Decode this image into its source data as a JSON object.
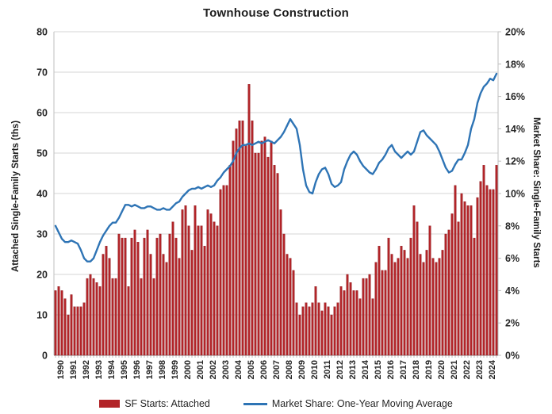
{
  "title": "Townhouse Construction",
  "legend": {
    "bars_label": "SF Starts: Attached",
    "line_label": "Market Share: One-Year Moving Average"
  },
  "colors": {
    "bar_fill": "#b22428",
    "bar_edge": "#8f1b20",
    "line": "#2e74b5",
    "grid": "#d6d6d6",
    "axis": "#bfbfbf",
    "axis_bottom": "#8c8c8c",
    "text": "#262626"
  },
  "chart_data": {
    "type": "bar",
    "title": "Townhouse Construction",
    "left_axis": {
      "title": "Attached Single-Family Starts (ths)",
      "min": 0,
      "max": 80,
      "step": 10,
      "tick_labels": [
        "80",
        "70",
        "60",
        "50",
        "40",
        "30",
        "20",
        "10",
        "0"
      ]
    },
    "right_axis": {
      "title": "Market Share: Single-Family Starts",
      "min": 0,
      "max": 20,
      "step": 2,
      "tick_labels": [
        "20%",
        "18%",
        "16%",
        "14%",
        "12%",
        "10%",
        "8%",
        "6%",
        "4%",
        "2%",
        "0%"
      ]
    },
    "x_year_labels": [
      "1990",
      "1991",
      "1992",
      "1993",
      "1994",
      "1995",
      "1996",
      "1997",
      "1998",
      "1999",
      "2000",
      "2001",
      "2002",
      "2003",
      "2004",
      "2005",
      "2006",
      "2007",
      "2008",
      "2009",
      "2010",
      "2011",
      "2012",
      "2013",
      "2014",
      "2015",
      "2016",
      "2017",
      "2018",
      "2019",
      "2020",
      "2021",
      "2022",
      "2023",
      "2024"
    ],
    "quarters_per_year": 4,
    "series": [
      {
        "name": "SF Starts: Attached",
        "kind": "bar",
        "axis": "left",
        "values": [
          16,
          17,
          16,
          14,
          10,
          15,
          12,
          12,
          12,
          13,
          19,
          20,
          19,
          18,
          17,
          25,
          27,
          24,
          19,
          19,
          30,
          29,
          29,
          17,
          29,
          31,
          28,
          19,
          29,
          31,
          25,
          19,
          29,
          30,
          25,
          23,
          30,
          33,
          29,
          24,
          36,
          37,
          32,
          26,
          37,
          32,
          32,
          27,
          36,
          35,
          33,
          32,
          41,
          42,
          42,
          47,
          53,
          56,
          58,
          58,
          52,
          67,
          58,
          50,
          50,
          53,
          54,
          49,
          53,
          47,
          45,
          36,
          30,
          25,
          24,
          21,
          13,
          10,
          12,
          13,
          12,
          13,
          17,
          13,
          11,
          13,
          12,
          10,
          12,
          13,
          17,
          16,
          20,
          18,
          16,
          16,
          14,
          19,
          19,
          20,
          14,
          23,
          27,
          21,
          21,
          29,
          25,
          23,
          24,
          27,
          26,
          24,
          29,
          37,
          33,
          25,
          23,
          26,
          32,
          24,
          23,
          24,
          26,
          30,
          31,
          35,
          42,
          33,
          40,
          38,
          37,
          37,
          29,
          39,
          43,
          47,
          42,
          41,
          41,
          47
        ]
      },
      {
        "name": "Market Share: One-Year Moving Average",
        "kind": "line",
        "axis": "right",
        "values": [
          8.0,
          7.6,
          7.2,
          7.0,
          7.0,
          7.1,
          7.0,
          6.9,
          6.5,
          6.0,
          5.8,
          5.8,
          6.0,
          6.5,
          7.0,
          7.4,
          7.7,
          8.0,
          8.2,
          8.2,
          8.5,
          8.9,
          9.3,
          9.3,
          9.2,
          9.3,
          9.2,
          9.1,
          9.1,
          9.2,
          9.2,
          9.1,
          9.0,
          9.0,
          9.1,
          9.0,
          9.0,
          9.2,
          9.4,
          9.5,
          9.8,
          10.0,
          10.2,
          10.3,
          10.3,
          10.4,
          10.3,
          10.4,
          10.5,
          10.4,
          10.5,
          10.8,
          11.0,
          11.3,
          11.5,
          11.7,
          12.0,
          12.5,
          12.8,
          13.0,
          13.0,
          13.1,
          13.0,
          13.1,
          13.2,
          13.1,
          13.2,
          13.3,
          13.2,
          13.1,
          13.3,
          13.5,
          13.8,
          14.2,
          14.6,
          14.3,
          14.0,
          13.0,
          11.5,
          10.5,
          10.1,
          10.0,
          10.7,
          11.2,
          11.5,
          11.6,
          11.2,
          10.6,
          10.4,
          10.5,
          10.7,
          11.5,
          12.0,
          12.4,
          12.6,
          12.4,
          12.0,
          11.7,
          11.5,
          11.3,
          11.2,
          11.5,
          11.9,
          12.1,
          12.4,
          12.8,
          13.0,
          12.6,
          12.4,
          12.2,
          12.4,
          12.6,
          12.4,
          12.6,
          13.2,
          13.8,
          13.9,
          13.6,
          13.4,
          13.2,
          13.0,
          12.6,
          12.1,
          11.6,
          11.3,
          11.4,
          11.8,
          12.1,
          12.1,
          12.5,
          13.0,
          14.0,
          14.6,
          15.6,
          16.2,
          16.6,
          16.8,
          17.1,
          17.0,
          17.4
        ]
      }
    ],
    "grid": "horizontal",
    "legend_position": "bottom"
  }
}
